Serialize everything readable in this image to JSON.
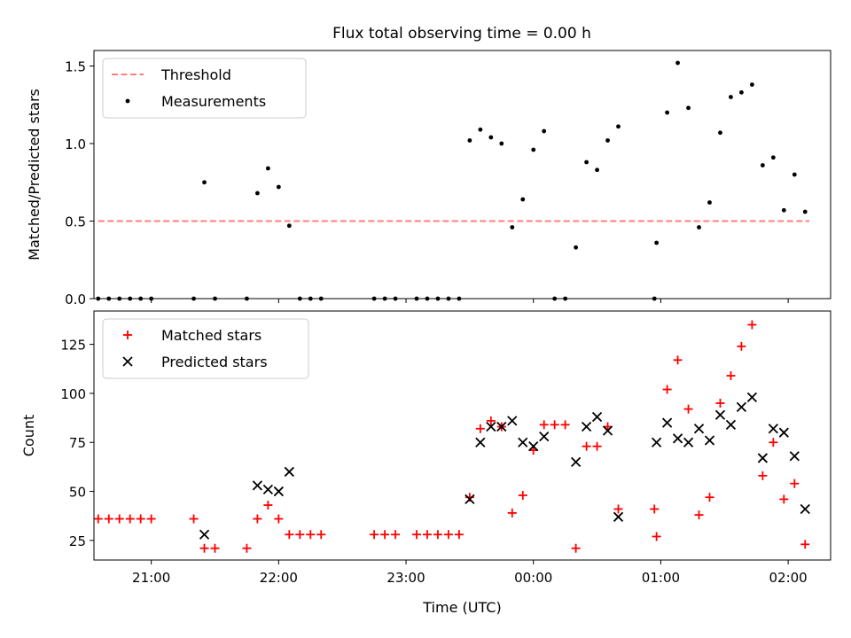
{
  "figure": {
    "title": "Flux total observing time = 0.00 h"
  },
  "chart_data": [
    {
      "type": "scatter",
      "ylabel": "Matched/Predicted stars",
      "ylim": [
        0,
        1.6
      ],
      "yticks": [
        0.0,
        0.5,
        1.0,
        1.5
      ],
      "ytick_labels": [
        "0.0",
        "0.5",
        "1.0",
        "1.5"
      ],
      "xlim": [
        "20:33",
        "02:20"
      ],
      "xticks": [
        "21:00",
        "22:00",
        "23:00",
        "00:00",
        "01:00",
        "02:00"
      ],
      "grid": false,
      "legend_position": "top-left",
      "legend": [
        {
          "label": "Threshold",
          "style": "dashed-line",
          "color": "#ff7f7f"
        },
        {
          "label": "Measurements",
          "style": "dot",
          "color": "#000000"
        }
      ],
      "threshold": {
        "value": 0.5,
        "x_start": "20:35",
        "x_end": "02:10"
      },
      "series": [
        {
          "name": "Measurements",
          "color": "#000000",
          "points": [
            [
              "20:35",
              0
            ],
            [
              "20:40",
              0
            ],
            [
              "20:45",
              0
            ],
            [
              "20:50",
              0
            ],
            [
              "20:55",
              0
            ],
            [
              "21:00",
              0
            ],
            [
              "21:20",
              0
            ],
            [
              "21:25",
              0.75
            ],
            [
              "21:30",
              0
            ],
            [
              "21:45",
              0
            ],
            [
              "21:50",
              0.68
            ],
            [
              "21:55",
              0.84
            ],
            [
              "22:00",
              0.72
            ],
            [
              "22:05",
              0.47
            ],
            [
              "22:10",
              0
            ],
            [
              "22:15",
              0
            ],
            [
              "22:20",
              0
            ],
            [
              "22:45",
              0
            ],
            [
              "22:50",
              0
            ],
            [
              "22:55",
              0
            ],
            [
              "23:05",
              0
            ],
            [
              "23:10",
              0
            ],
            [
              "23:15",
              0
            ],
            [
              "23:20",
              0
            ],
            [
              "23:25",
              0
            ],
            [
              "23:30",
              1.02
            ],
            [
              "23:35",
              1.09
            ],
            [
              "23:40",
              1.04
            ],
            [
              "23:45",
              1.0
            ],
            [
              "23:50",
              0.46
            ],
            [
              "23:55",
              0.64
            ],
            [
              "24:00",
              0.96
            ],
            [
              "24:05",
              1.08
            ],
            [
              "24:10",
              0
            ],
            [
              "24:15",
              0
            ],
            [
              "24:20",
              0.33
            ],
            [
              "24:25",
              0.88
            ],
            [
              "24:30",
              0.83
            ],
            [
              "24:35",
              1.02
            ],
            [
              "24:40",
              1.11
            ],
            [
              "24:57",
              0
            ],
            [
              "24:58",
              0.36
            ],
            [
              "25:03",
              1.2
            ],
            [
              "25:08",
              1.52
            ],
            [
              "25:13",
              1.23
            ],
            [
              "25:18",
              0.46
            ],
            [
              "25:23",
              0.62
            ],
            [
              "25:28",
              1.07
            ],
            [
              "25:33",
              1.3
            ],
            [
              "25:38",
              1.33
            ],
            [
              "25:43",
              1.38
            ],
            [
              "25:48",
              0.86
            ],
            [
              "25:53",
              0.91
            ],
            [
              "25:58",
              0.57
            ],
            [
              "26:03",
              0.8
            ],
            [
              "26:08",
              0.56
            ]
          ]
        }
      ]
    },
    {
      "type": "scatter",
      "ylabel": "Count",
      "xlabel": "Time (UTC)",
      "ylim": [
        15,
        142
      ],
      "yticks": [
        25,
        50,
        75,
        100,
        125
      ],
      "ytick_labels": [
        "25",
        "50",
        "75",
        "100",
        "125"
      ],
      "xlim": [
        "20:33",
        "02:20"
      ],
      "xticks": [
        "21:00",
        "22:00",
        "23:00",
        "00:00",
        "01:00",
        "02:00"
      ],
      "xtick_labels": [
        "21:00",
        "22:00",
        "23:00",
        "00:00",
        "01:00",
        "02:00"
      ],
      "grid": false,
      "legend_position": "top-left",
      "legend": [
        {
          "label": "Matched stars",
          "style": "plus",
          "color": "#ff0000"
        },
        {
          "label": "Predicted stars",
          "style": "cross",
          "color": "#000000"
        }
      ],
      "series": [
        {
          "name": "Matched stars",
          "color": "#ff0000",
          "marker": "plus",
          "points": [
            [
              "20:35",
              36
            ],
            [
              "20:40",
              36
            ],
            [
              "20:45",
              36
            ],
            [
              "20:50",
              36
            ],
            [
              "20:55",
              36
            ],
            [
              "21:00",
              36
            ],
            [
              "21:20",
              36
            ],
            [
              "21:25",
              21
            ],
            [
              "21:30",
              21
            ],
            [
              "21:45",
              21
            ],
            [
              "21:50",
              36
            ],
            [
              "21:55",
              43
            ],
            [
              "22:00",
              36
            ],
            [
              "22:05",
              28
            ],
            [
              "22:10",
              28
            ],
            [
              "22:15",
              28
            ],
            [
              "22:20",
              28
            ],
            [
              "22:45",
              28
            ],
            [
              "22:50",
              28
            ],
            [
              "22:55",
              28
            ],
            [
              "23:05",
              28
            ],
            [
              "23:10",
              28
            ],
            [
              "23:15",
              28
            ],
            [
              "23:20",
              28
            ],
            [
              "23:25",
              28
            ],
            [
              "23:30",
              47
            ],
            [
              "23:35",
              82
            ],
            [
              "23:40",
              86
            ],
            [
              "23:45",
              83
            ],
            [
              "23:50",
              39
            ],
            [
              "23:55",
              48
            ],
            [
              "24:00",
              71
            ],
            [
              "24:05",
              84
            ],
            [
              "24:10",
              84
            ],
            [
              "24:15",
              84
            ],
            [
              "24:20",
              21
            ],
            [
              "24:25",
              73
            ],
            [
              "24:30",
              73
            ],
            [
              "24:35",
              83
            ],
            [
              "24:40",
              41
            ],
            [
              "24:57",
              41
            ],
            [
              "24:58",
              27
            ],
            [
              "25:03",
              102
            ],
            [
              "25:08",
              117
            ],
            [
              "25:13",
              92
            ],
            [
              "25:18",
              38
            ],
            [
              "25:23",
              47
            ],
            [
              "25:28",
              95
            ],
            [
              "25:33",
              109
            ],
            [
              "25:38",
              124
            ],
            [
              "25:43",
              135
            ],
            [
              "25:48",
              58
            ],
            [
              "25:53",
              75
            ],
            [
              "25:58",
              46
            ],
            [
              "26:03",
              54
            ],
            [
              "26:08",
              23
            ]
          ]
        },
        {
          "name": "Predicted stars",
          "color": "#000000",
          "marker": "cross",
          "points": [
            [
              "21:25",
              28
            ],
            [
              "21:50",
              53
            ],
            [
              "21:55",
              51
            ],
            [
              "22:00",
              50
            ],
            [
              "22:05",
              60
            ],
            [
              "23:30",
              46
            ],
            [
              "23:35",
              75
            ],
            [
              "23:40",
              83
            ],
            [
              "23:45",
              83
            ],
            [
              "23:50",
              86
            ],
            [
              "23:55",
              75
            ],
            [
              "24:00",
              73
            ],
            [
              "24:05",
              78
            ],
            [
              "24:20",
              65
            ],
            [
              "24:25",
              83
            ],
            [
              "24:30",
              88
            ],
            [
              "24:35",
              81
            ],
            [
              "24:40",
              37
            ],
            [
              "24:58",
              75
            ],
            [
              "25:03",
              85
            ],
            [
              "25:08",
              77
            ],
            [
              "25:13",
              75
            ],
            [
              "25:18",
              82
            ],
            [
              "25:23",
              76
            ],
            [
              "25:28",
              89
            ],
            [
              "25:33",
              84
            ],
            [
              "25:38",
              93
            ],
            [
              "25:43",
              98
            ],
            [
              "25:48",
              67
            ],
            [
              "25:53",
              82
            ],
            [
              "25:58",
              80
            ],
            [
              "26:03",
              68
            ],
            [
              "26:08",
              41
            ]
          ]
        }
      ]
    }
  ]
}
